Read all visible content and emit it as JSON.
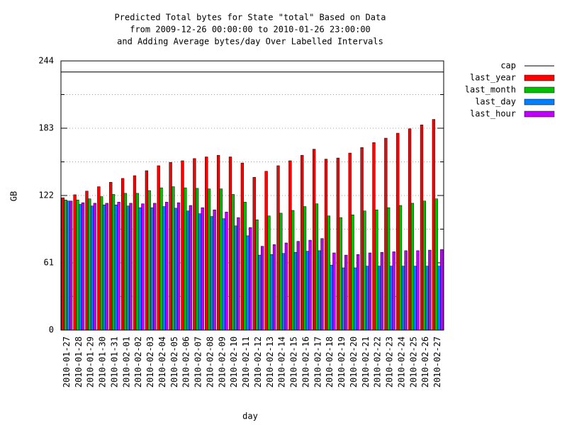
{
  "chart_data": {
    "type": "bar",
    "title_lines": [
      "Predicted Total bytes for State \"total\" Based on Data",
      "from 2009-12-26 00:00:00 to 2010-01-26 23:00:00",
      "and Adding Average bytes/day Over Labelled Intervals"
    ],
    "x_label": "day",
    "y_label": "GB",
    "categories": [
      "2010-01-27",
      "2010-01-28",
      "2010-01-29",
      "2010-01-30",
      "2010-01-31",
      "2010-02-01",
      "2010-02-02",
      "2010-02-03",
      "2010-02-04",
      "2010-02-05",
      "2010-02-06",
      "2010-02-07",
      "2010-02-08",
      "2010-02-09",
      "2010-02-10",
      "2010-02-11",
      "2010-02-12",
      "2010-02-13",
      "2010-02-14",
      "2010-02-15",
      "2010-02-16",
      "2010-02-17",
      "2010-02-18",
      "2010-02-19",
      "2010-02-20",
      "2010-02-21",
      "2010-02-22",
      "2010-02-23",
      "2010-02-24",
      "2010-02-25",
      "2010-02-26",
      "2010-02-27"
    ],
    "cap": {
      "name": "cap",
      "value": 234,
      "color": "#000000"
    },
    "series": [
      {
        "name": "last_year",
        "color": "#ff0000",
        "values": [
          120,
          122.7,
          126,
          130,
          134,
          137.5,
          140,
          144.5,
          149,
          152,
          153.5,
          155.5,
          157,
          158.5,
          157,
          151.5,
          138.5,
          144,
          149,
          153.5,
          158.5,
          164,
          155,
          156,
          160.5,
          165.5,
          170,
          174,
          178.5,
          182.5,
          186,
          191
        ]
      },
      {
        "name": "last_month",
        "color": "#00c000",
        "values": [
          118,
          118,
          119,
          121,
          123,
          124,
          124,
          126.5,
          129,
          130,
          129,
          128.5,
          128,
          128,
          123,
          116,
          100,
          103.5,
          106,
          108.5,
          112,
          114.5,
          103.5,
          102,
          104.5,
          108,
          109,
          111,
          113,
          115,
          117,
          119
        ]
      },
      {
        "name": "last_day",
        "color": "#0080ff",
        "values": [
          117,
          114,
          112.5,
          113.5,
          113.5,
          112.5,
          111,
          111,
          112,
          110.5,
          108,
          105.5,
          103,
          101,
          94.5,
          85.5,
          68,
          68.5,
          69.5,
          70.5,
          71.5,
          72,
          59,
          56.5,
          56.5,
          58,
          58,
          58,
          58,
          58,
          58,
          58
        ]
      },
      {
        "name": "last_hour",
        "color": "#c000ff",
        "values": [
          117,
          115.5,
          115,
          115,
          116,
          115,
          114.5,
          115,
          116,
          115.5,
          113,
          111,
          109,
          107,
          102,
          93,
          76,
          77.5,
          79,
          80.5,
          81.5,
          83,
          70,
          68,
          68.5,
          70,
          70.5,
          71,
          72,
          72,
          72.5,
          73
        ]
      }
    ],
    "ylim": [
      0,
      244
    ],
    "yticks": [
      0,
      61,
      122,
      183,
      244
    ],
    "minor_yticks": [
      30.5,
      91.5,
      152.5,
      213.5
    ],
    "grid": true
  }
}
